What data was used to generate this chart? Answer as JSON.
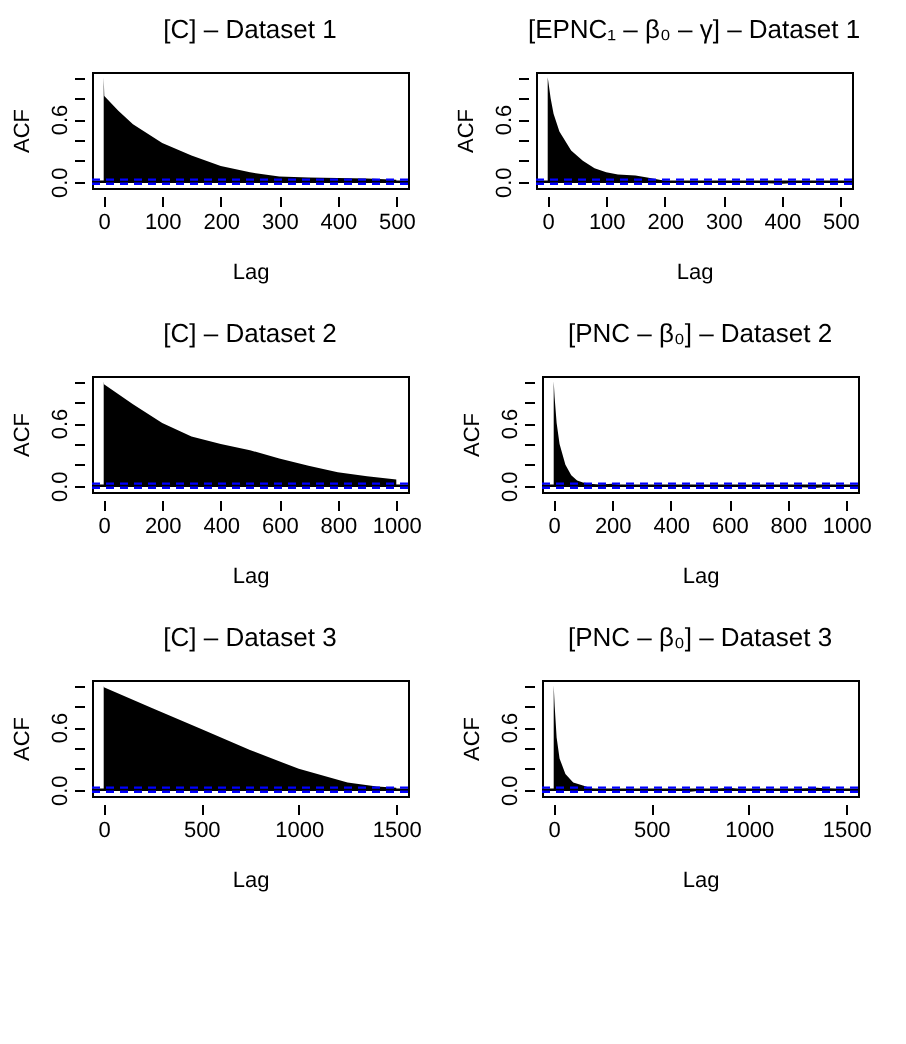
{
  "chart_data": [
    {
      "type": "area",
      "title": "[C] – Dataset 1",
      "xlabel": "Lag",
      "ylabel": "ACF",
      "grid": false,
      "xlim": [
        -20,
        520
      ],
      "xticks": [
        0,
        100,
        200,
        300,
        400,
        500
      ],
      "ylim": [
        -0.06,
        1.05
      ],
      "yticks": [
        {
          "value": 0,
          "label": "0.0"
        },
        {
          "value": 0.2,
          "label": null
        },
        {
          "value": 0.4,
          "label": null
        },
        {
          "value": 0.6,
          "label": "0.6"
        },
        {
          "value": 0.8,
          "label": null
        },
        {
          "value": 1.0,
          "label": null
        }
      ],
      "series": [
        {
          "color": "#000000",
          "x": [
            0,
            1,
            25,
            50,
            100,
            150,
            200,
            250,
            300,
            350,
            400,
            450,
            500
          ],
          "values": [
            1.0,
            0.82,
            0.68,
            0.55,
            0.37,
            0.25,
            0.15,
            0.09,
            0.05,
            0.04,
            0.035,
            0.03,
            0.02
          ]
        }
      ],
      "ref_lines": [
        {
          "axis": "y",
          "value": 0,
          "color": "#000000",
          "line_style": "solid"
        },
        {
          "axis": "y",
          "value": 0.02,
          "color": "#0000ff",
          "line_style": "dashed"
        },
        {
          "axis": "y",
          "value": -0.02,
          "color": "#0000ff",
          "line_style": "dashed"
        }
      ]
    },
    {
      "type": "area",
      "title": "[EPNC₁ – β₀ – γ] – Dataset 1",
      "xlabel": "Lag",
      "ylabel": "ACF",
      "grid": false,
      "xlim": [
        -20,
        520
      ],
      "xticks": [
        0,
        100,
        200,
        300,
        400,
        500
      ],
      "ylim": [
        -0.06,
        1.05
      ],
      "yticks": [
        {
          "value": 0,
          "label": "0.0"
        },
        {
          "value": 0.2,
          "label": null
        },
        {
          "value": 0.4,
          "label": null
        },
        {
          "value": 0.6,
          "label": "0.6"
        },
        {
          "value": 0.8,
          "label": null
        },
        {
          "value": 1.0,
          "label": null
        }
      ],
      "series": [
        {
          "color": "#000000",
          "x": [
            0,
            5,
            10,
            20,
            40,
            60,
            80,
            100,
            120,
            150,
            170,
            200,
            250,
            300,
            350,
            400,
            430,
            450,
            500
          ],
          "values": [
            1.0,
            0.8,
            0.65,
            0.48,
            0.3,
            0.2,
            0.13,
            0.09,
            0.07,
            0.06,
            0.04,
            0.01,
            -0.01,
            0.0,
            -0.01,
            -0.02,
            -0.01,
            0.0,
            0.0
          ]
        }
      ],
      "ref_lines": [
        {
          "axis": "y",
          "value": 0,
          "color": "#000000",
          "line_style": "solid"
        },
        {
          "axis": "y",
          "value": 0.02,
          "color": "#0000ff",
          "line_style": "dashed"
        },
        {
          "axis": "y",
          "value": -0.02,
          "color": "#0000ff",
          "line_style": "dashed"
        }
      ]
    },
    {
      "type": "area",
      "title": "[C] – Dataset 2",
      "xlabel": "Lag",
      "ylabel": "ACF",
      "grid": false,
      "xlim": [
        -40,
        1040
      ],
      "xticks": [
        0,
        200,
        400,
        600,
        800,
        1000
      ],
      "ylim": [
        -0.06,
        1.05
      ],
      "yticks": [
        {
          "value": 0,
          "label": "0.0"
        },
        {
          "value": 0.2,
          "label": null
        },
        {
          "value": 0.4,
          "label": null
        },
        {
          "value": 0.6,
          "label": "0.6"
        },
        {
          "value": 0.8,
          "label": null
        },
        {
          "value": 1.0,
          "label": null
        }
      ],
      "series": [
        {
          "color": "#000000",
          "x": [
            0,
            1,
            100,
            200,
            300,
            400,
            500,
            600,
            700,
            800,
            900,
            1000
          ],
          "values": [
            1.0,
            0.97,
            0.78,
            0.6,
            0.47,
            0.4,
            0.34,
            0.26,
            0.19,
            0.13,
            0.09,
            0.06
          ]
        }
      ],
      "ref_lines": [
        {
          "axis": "y",
          "value": 0,
          "color": "#000000",
          "line_style": "solid"
        },
        {
          "axis": "y",
          "value": 0.02,
          "color": "#0000ff",
          "line_style": "dashed"
        },
        {
          "axis": "y",
          "value": -0.02,
          "color": "#0000ff",
          "line_style": "dashed"
        }
      ]
    },
    {
      "type": "area",
      "title": "[PNC – β₀] – Dataset 2",
      "xlabel": "Lag",
      "ylabel": "ACF",
      "grid": false,
      "xlim": [
        -40,
        1040
      ],
      "xticks": [
        0,
        200,
        400,
        600,
        800,
        1000
      ],
      "ylim": [
        -0.06,
        1.05
      ],
      "yticks": [
        {
          "value": 0,
          "label": "0.0"
        },
        {
          "value": 0.2,
          "label": null
        },
        {
          "value": 0.4,
          "label": null
        },
        {
          "value": 0.6,
          "label": "0.6"
        },
        {
          "value": 0.8,
          "label": null
        },
        {
          "value": 1.0,
          "label": null
        }
      ],
      "series": [
        {
          "color": "#000000",
          "x": [
            0,
            3,
            10,
            20,
            40,
            60,
            80,
            100,
            150,
            200,
            250,
            300,
            400,
            450,
            500,
            600,
            700,
            800,
            900,
            1000
          ],
          "values": [
            1.0,
            0.85,
            0.6,
            0.4,
            0.2,
            0.1,
            0.05,
            0.03,
            0.01,
            0.02,
            -0.01,
            -0.01,
            0.0,
            0.01,
            0.0,
            -0.01,
            0.0,
            -0.01,
            -0.02,
            0.0
          ]
        }
      ],
      "ref_lines": [
        {
          "axis": "y",
          "value": 0,
          "color": "#000000",
          "line_style": "solid"
        },
        {
          "axis": "y",
          "value": 0.02,
          "color": "#0000ff",
          "line_style": "dashed"
        },
        {
          "axis": "y",
          "value": -0.02,
          "color": "#0000ff",
          "line_style": "dashed"
        }
      ]
    },
    {
      "type": "area",
      "title": "[C] – Dataset 3",
      "xlabel": "Lag",
      "ylabel": "ACF",
      "grid": false,
      "xlim": [
        -60,
        1560
      ],
      "xticks": [
        0,
        500,
        1000,
        1500
      ],
      "ylim": [
        -0.06,
        1.05
      ],
      "yticks": [
        {
          "value": 0,
          "label": "0.0"
        },
        {
          "value": 0.2,
          "label": null
        },
        {
          "value": 0.4,
          "label": null
        },
        {
          "value": 0.6,
          "label": "0.6"
        },
        {
          "value": 0.8,
          "label": null
        },
        {
          "value": 1.0,
          "label": null
        }
      ],
      "series": [
        {
          "color": "#000000",
          "x": [
            0,
            1,
            250,
            500,
            750,
            1000,
            1250,
            1400,
            1500
          ],
          "values": [
            1.0,
            0.98,
            0.78,
            0.58,
            0.38,
            0.2,
            0.07,
            0.03,
            0.02
          ]
        }
      ],
      "ref_lines": [
        {
          "axis": "y",
          "value": 0,
          "color": "#000000",
          "line_style": "solid"
        },
        {
          "axis": "y",
          "value": 0.02,
          "color": "#0000ff",
          "line_style": "dashed"
        },
        {
          "axis": "y",
          "value": -0.02,
          "color": "#0000ff",
          "line_style": "dashed"
        }
      ]
    },
    {
      "type": "area",
      "title": "[PNC – β₀] – Dataset 3",
      "xlabel": "Lag",
      "ylabel": "ACF",
      "grid": false,
      "xlim": [
        -60,
        1560
      ],
      "xticks": [
        0,
        500,
        1000,
        1500
      ],
      "ylim": [
        -0.06,
        1.05
      ],
      "yticks": [
        {
          "value": 0,
          "label": "0.0"
        },
        {
          "value": 0.2,
          "label": null
        },
        {
          "value": 0.4,
          "label": null
        },
        {
          "value": 0.6,
          "label": "0.6"
        },
        {
          "value": 0.8,
          "label": null
        },
        {
          "value": 1.0,
          "label": null
        }
      ],
      "series": [
        {
          "color": "#000000",
          "x": [
            0,
            5,
            15,
            30,
            60,
            100,
            150,
            200,
            300,
            400,
            500,
            600,
            700,
            800,
            900,
            1000,
            1100,
            1200,
            1350,
            1500
          ],
          "values": [
            1.0,
            0.8,
            0.5,
            0.3,
            0.15,
            0.07,
            0.04,
            0.01,
            -0.01,
            0.0,
            -0.01,
            0.0,
            -0.02,
            0.0,
            0.02,
            -0.01,
            0.0,
            0.0,
            0.02,
            0.0
          ]
        }
      ],
      "ref_lines": [
        {
          "axis": "y",
          "value": 0,
          "color": "#000000",
          "line_style": "solid"
        },
        {
          "axis": "y",
          "value": 0.02,
          "color": "#0000ff",
          "line_style": "dashed"
        },
        {
          "axis": "y",
          "value": -0.02,
          "color": "#0000ff",
          "line_style": "dashed"
        }
      ]
    }
  ]
}
